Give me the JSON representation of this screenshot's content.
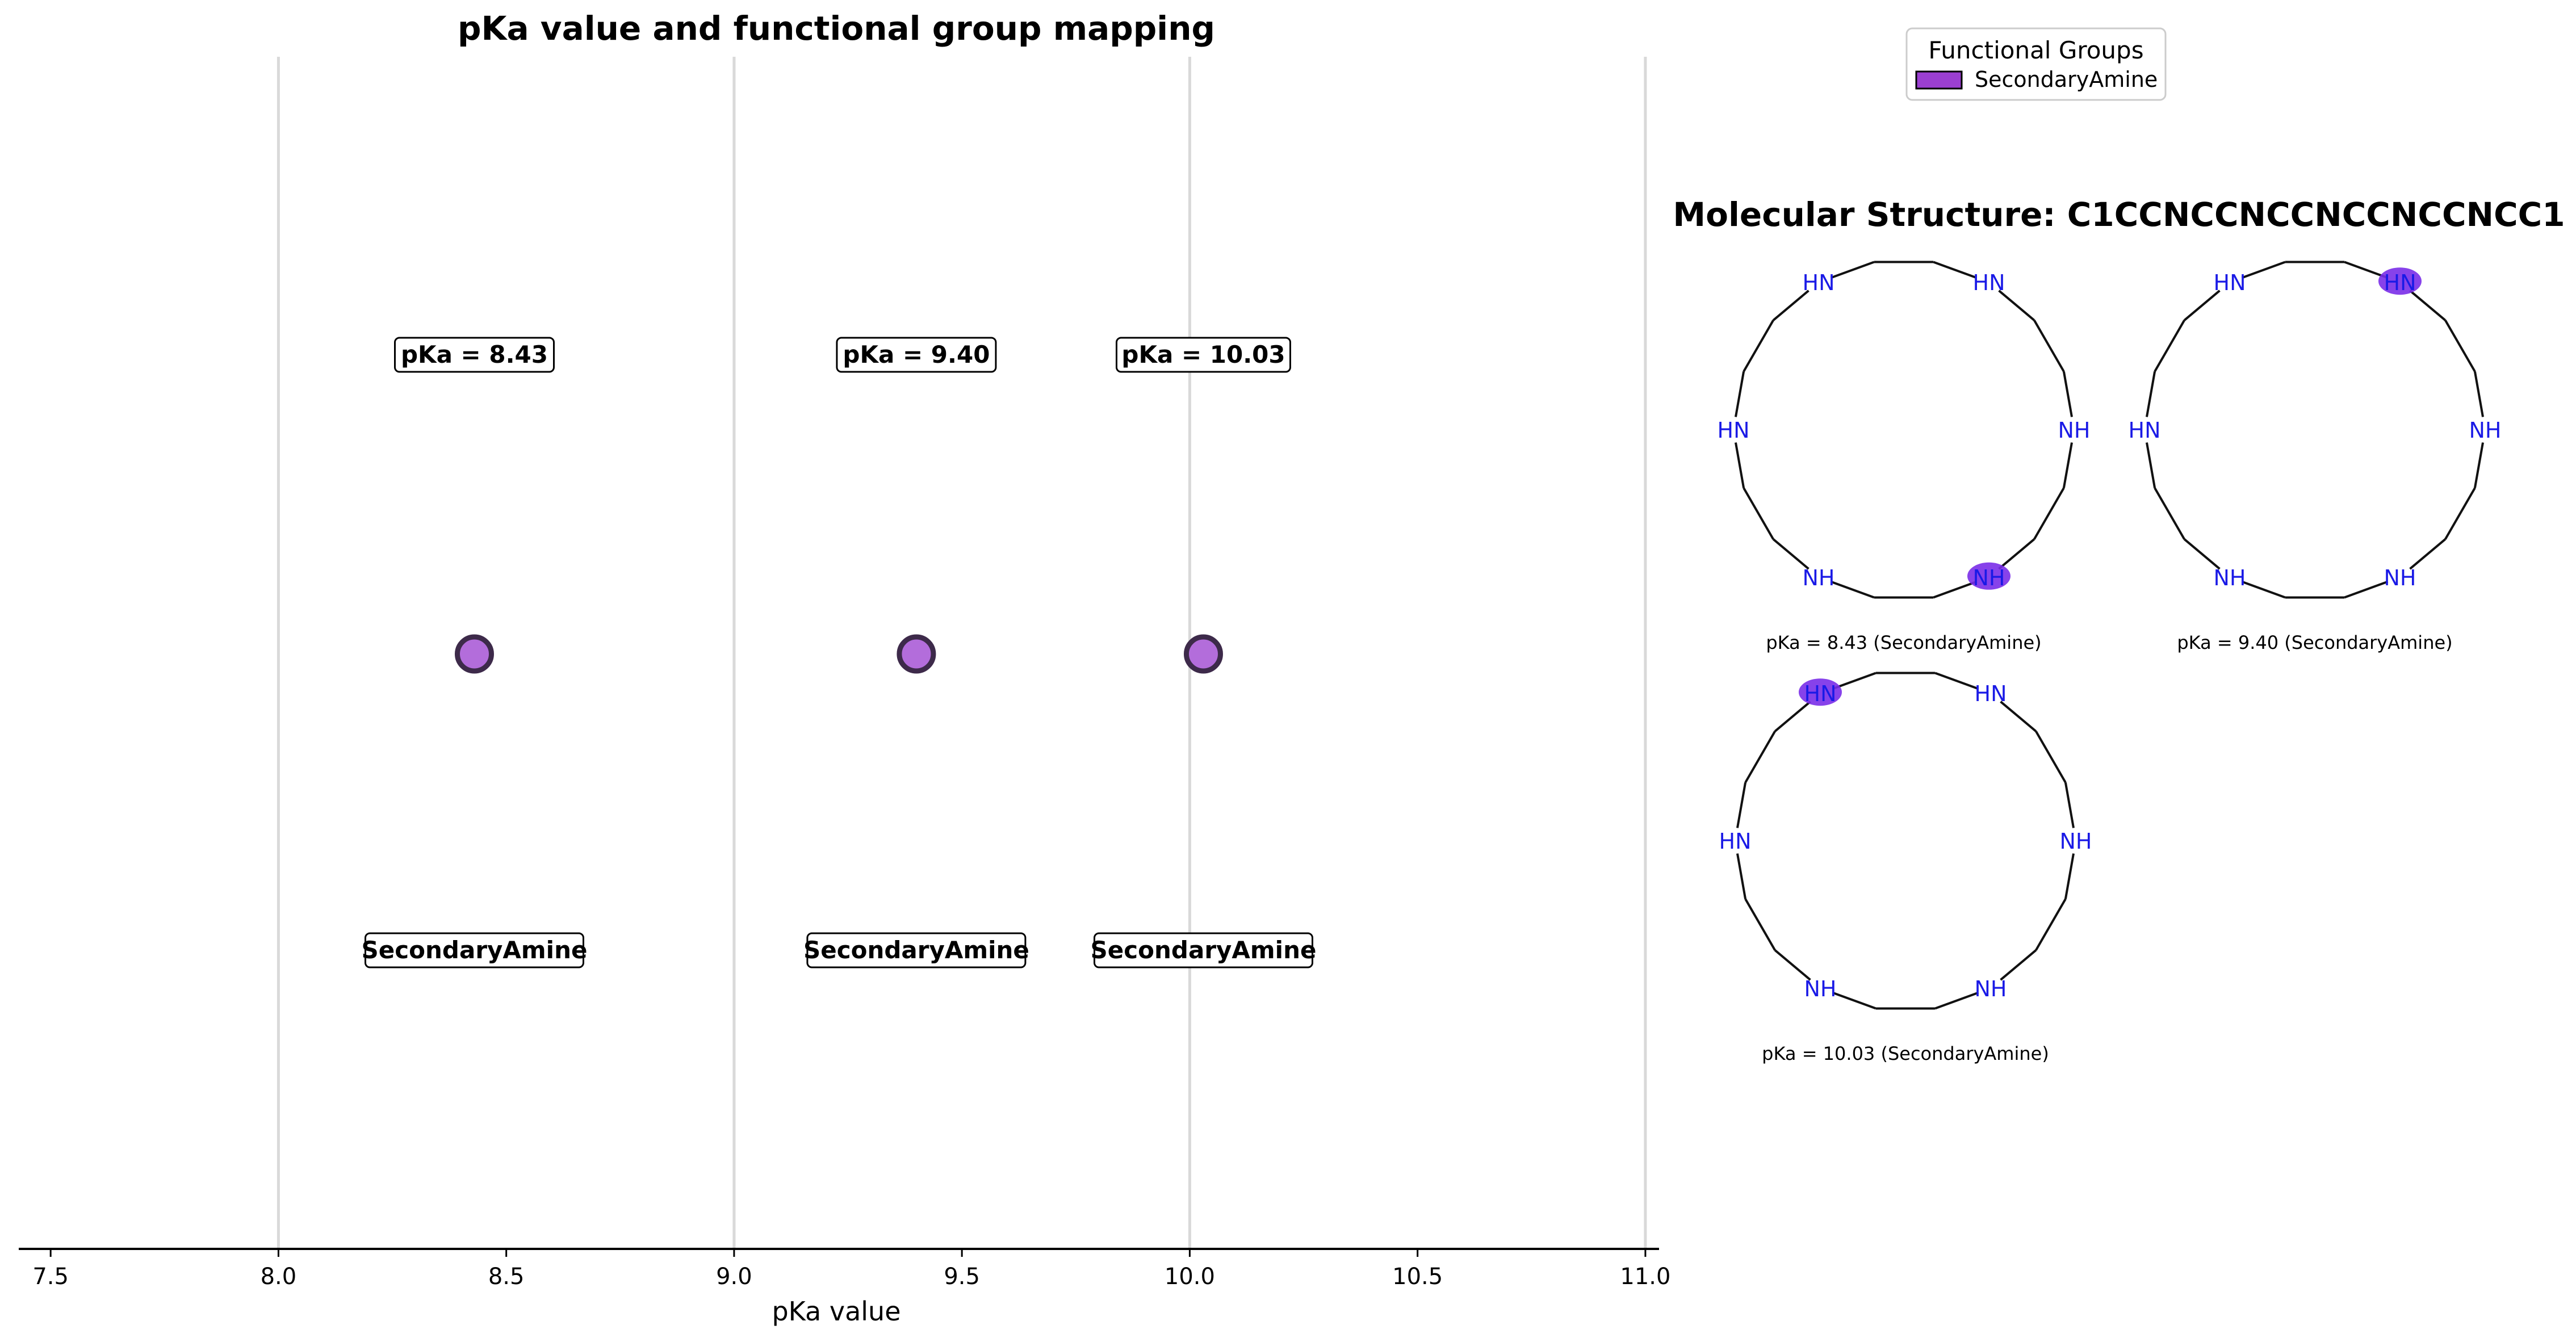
{
  "chart_data": {
    "type": "scatter",
    "title": "pKa value and functional group mapping",
    "xlabel": "pKa value",
    "xlim": [
      7.43,
      11.03
    ],
    "x_ticks": [
      7.5,
      8.0,
      8.5,
      9.0,
      9.5,
      10.0,
      10.5,
      11.0
    ],
    "x_tick_labels": [
      "7.5",
      "8.0",
      "8.5",
      "9.0",
      "9.5",
      "10.0",
      "10.5",
      "11.0"
    ],
    "vertical_gridlines_at": [
      8.0,
      9.0,
      10.0,
      11.0
    ],
    "points": [
      {
        "x": 8.43,
        "value_label": "pKa = 8.43",
        "group_label": "SecondaryAmine"
      },
      {
        "x": 9.4,
        "value_label": "pKa = 9.40",
        "group_label": "SecondaryAmine"
      },
      {
        "x": 10.03,
        "value_label": "pKa = 10.03",
        "group_label": "SecondaryAmine"
      }
    ],
    "point_color": "#b36ddb",
    "point_edge_color": "#3d2a4a",
    "legend": {
      "title": "Functional Groups",
      "placement": "top-right",
      "entries": [
        {
          "name": "SecondaryAmine",
          "color": "#9b3fd1"
        }
      ]
    }
  },
  "molecule_panel": {
    "title": "Molecular Structure: C1CCNCCNCCNCCNCCNCC1",
    "atom_label_color": "#1a1ae6",
    "highlight_color": "#7a2ee8",
    "structures": [
      {
        "caption": "pKa = 8.43 (SecondaryAmine)",
        "atom_labels": [
          "HN",
          "NH",
          "HN",
          "HN",
          "NH",
          "NH"
        ],
        "highlighted_label": "NH"
      },
      {
        "caption": "pKa = 9.40 (SecondaryAmine)",
        "atom_labels": [
          "HN",
          "NH",
          "HN",
          "HN",
          "NH",
          "NH"
        ],
        "highlighted_label": "HN"
      },
      {
        "caption": "pKa = 10.03 (SecondaryAmine)",
        "atom_labels": [
          "HN",
          "NH",
          "HN",
          "HN",
          "NH",
          "NH"
        ],
        "highlighted_label": "HN"
      }
    ]
  }
}
